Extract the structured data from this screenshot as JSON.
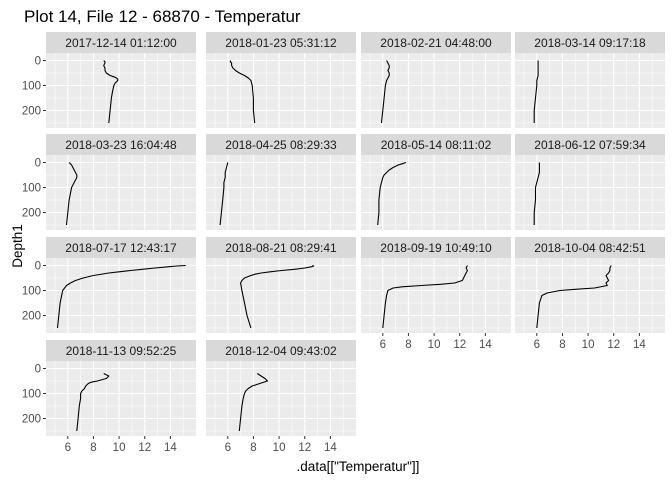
{
  "chart_data": {
    "type": "line",
    "title": "Plot 14, File 12 - 68870  -  Temperatur",
    "xlabel": ".data[[\"Temperatur\"]]",
    "ylabel": "Depth1",
    "xlim": [
      4.3,
      16.0
    ],
    "ylim": [
      -30,
      270
    ],
    "y_reversed": true,
    "x_ticks": [
      6,
      8,
      10,
      12,
      14
    ],
    "y_ticks": [
      0,
      100,
      200
    ],
    "grid": true,
    "legend": "none",
    "facet_columns": 4,
    "colors": {
      "panel_background": "#ebebeb",
      "grid_line": "#ffffff",
      "strip_background": "#d9d9d9",
      "line": "#000000"
    },
    "panels": [
      {
        "label": "2017-12-14 01:12:00",
        "depth": [
          0,
          5,
          10,
          20,
          30,
          40,
          50,
          60,
          65,
          70,
          75,
          80,
          85,
          90,
          100,
          120,
          150,
          200,
          250
        ],
        "temperature": [
          8.8,
          8.9,
          8.9,
          8.8,
          8.9,
          8.9,
          9.0,
          9.3,
          9.6,
          9.8,
          9.9,
          9.9,
          9.8,
          9.7,
          9.6,
          9.5,
          9.4,
          9.3,
          9.2
        ]
      },
      {
        "label": "2018-01-23 05:31:12",
        "depth": [
          0,
          5,
          10,
          20,
          30,
          40,
          50,
          60,
          70,
          80,
          100,
          150,
          200,
          250
        ],
        "temperature": [
          6.2,
          6.2,
          6.3,
          6.3,
          6.4,
          6.6,
          6.9,
          7.3,
          7.6,
          7.8,
          7.9,
          8.0,
          8.0,
          8.1
        ]
      },
      {
        "label": "2018-02-21 04:48:00",
        "depth": [
          0,
          10,
          20,
          30,
          40,
          50,
          60,
          70,
          80,
          100,
          150,
          200,
          250
        ],
        "temperature": [
          6.3,
          6.4,
          6.5,
          6.5,
          6.4,
          6.5,
          6.5,
          6.4,
          6.3,
          6.2,
          6.1,
          6.0,
          5.9
        ]
      },
      {
        "label": "2018-03-14 09:17:18",
        "depth": [
          0,
          20,
          40,
          60,
          80,
          100,
          150,
          200,
          250
        ],
        "temperature": [
          6.1,
          6.1,
          6.1,
          6.1,
          6.0,
          6.0,
          5.9,
          5.8,
          5.8
        ]
      },
      {
        "label": "2018-03-23 16:04:48",
        "depth": [
          0,
          10,
          20,
          30,
          40,
          50,
          60,
          70,
          80,
          90,
          100,
          150,
          200,
          250
        ],
        "temperature": [
          6.1,
          6.3,
          6.4,
          6.5,
          6.6,
          6.7,
          6.7,
          6.6,
          6.5,
          6.4,
          6.3,
          6.1,
          6.0,
          5.9
        ]
      },
      {
        "label": "2018-04-25 08:29:33",
        "depth": [
          0,
          20,
          40,
          60,
          80,
          100,
          150,
          200,
          250
        ],
        "temperature": [
          6.0,
          5.9,
          5.8,
          5.8,
          5.7,
          5.7,
          5.6,
          5.5,
          5.4
        ]
      },
      {
        "label": "2018-05-14 08:11:02",
        "depth": [
          0,
          5,
          10,
          20,
          30,
          40,
          50,
          60,
          80,
          100,
          150,
          200,
          250
        ],
        "temperature": [
          7.8,
          7.5,
          7.2,
          6.8,
          6.5,
          6.3,
          6.1,
          6.0,
          5.9,
          5.8,
          5.7,
          5.7,
          5.6
        ]
      },
      {
        "label": "2018-06-12 07:59:34",
        "depth": [
          0,
          20,
          40,
          60,
          80,
          100,
          150,
          200,
          250
        ],
        "temperature": [
          6.2,
          6.2,
          6.2,
          6.1,
          6.0,
          5.9,
          5.9,
          5.8,
          5.8
        ]
      },
      {
        "label": "2018-07-17 12:43:17",
        "depth": [
          0,
          2,
          5,
          10,
          15,
          20,
          25,
          30,
          40,
          50,
          60,
          70,
          80,
          100,
          150,
          200,
          250
        ],
        "temperature": [
          15.2,
          14.5,
          13.8,
          12.8,
          11.8,
          10.9,
          10.0,
          9.2,
          8.0,
          7.2,
          6.6,
          6.2,
          5.9,
          5.6,
          5.4,
          5.3,
          5.2
        ]
      },
      {
        "label": "2018-08-21 08:29:41",
        "depth": [
          0,
          2,
          5,
          10,
          15,
          20,
          25,
          30,
          35,
          40,
          50,
          60,
          70,
          100,
          150,
          200,
          250
        ],
        "temperature": [
          12.6,
          12.7,
          12.5,
          12.0,
          11.2,
          10.2,
          9.3,
          8.6,
          8.1,
          7.8,
          7.3,
          7.1,
          7.0,
          7.1,
          7.3,
          7.5,
          7.8
        ]
      },
      {
        "label": "2018-09-19 10:49:10",
        "depth": [
          0,
          10,
          20,
          30,
          40,
          50,
          60,
          70,
          75,
          80,
          85,
          90,
          100,
          120,
          150,
          200,
          250
        ],
        "temperature": [
          12.6,
          12.5,
          12.6,
          12.5,
          12.4,
          12.3,
          12.2,
          11.6,
          10.5,
          9.0,
          7.5,
          6.8,
          6.4,
          6.3,
          6.2,
          6.1,
          6.0
        ]
      },
      {
        "label": "2018-10-04 08:42:51",
        "depth": [
          0,
          10,
          20,
          30,
          40,
          50,
          60,
          70,
          80,
          90,
          95,
          100,
          110,
          120,
          150,
          200,
          250
        ],
        "temperature": [
          11.8,
          11.7,
          11.7,
          11.6,
          11.4,
          11.5,
          11.6,
          11.4,
          11.5,
          10.5,
          9.0,
          7.8,
          6.8,
          6.4,
          6.2,
          6.1,
          6.0
        ]
      },
      {
        "label": "2018-11-13 09:52:25",
        "depth": [
          20,
          30,
          40,
          50,
          55,
          60,
          70,
          80,
          90,
          100,
          120,
          150,
          200,
          250
        ],
        "temperature": [
          8.8,
          9.2,
          9.0,
          8.3,
          7.8,
          7.6,
          7.4,
          7.3,
          7.1,
          7.0,
          7.0,
          6.9,
          6.8,
          6.7
        ]
      },
      {
        "label": "2018-12-04 09:43:02",
        "depth": [
          20,
          30,
          40,
          50,
          60,
          70,
          80,
          90,
          100,
          120,
          150,
          200,
          250
        ],
        "temperature": [
          8.3,
          8.6,
          8.9,
          9.1,
          8.5,
          7.9,
          7.6,
          7.4,
          7.3,
          7.2,
          7.1,
          7.0,
          6.9
        ]
      }
    ]
  }
}
